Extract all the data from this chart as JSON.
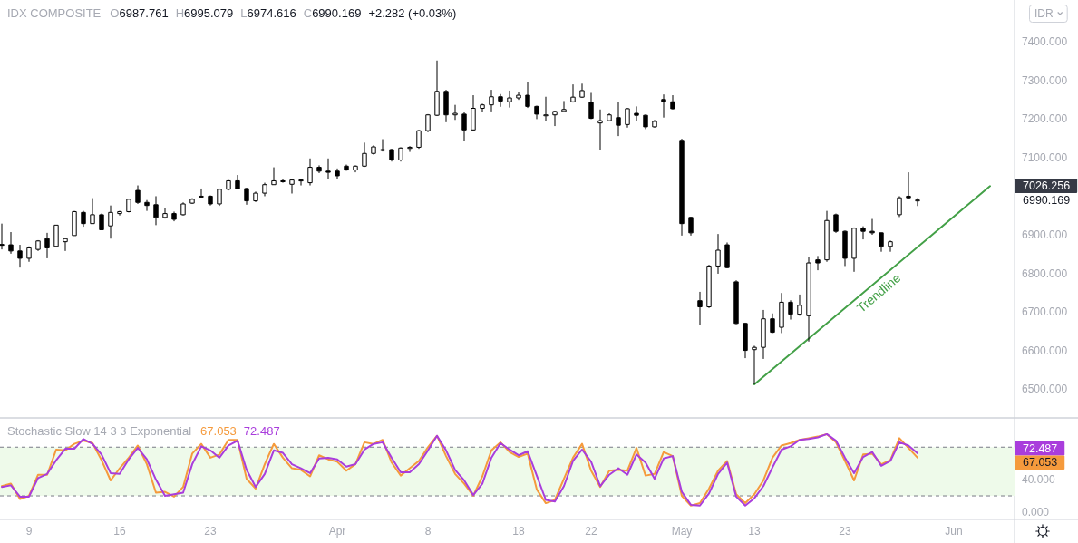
{
  "chart_data": [
    {
      "type": "candlestick",
      "title": "IDX COMPOSITE",
      "ylabel": "IDR",
      "categories": [
        null,
        null,
        null,
        null,
        null,
        null,
        null,
        null,
        null,
        null,
        null,
        null,
        null,
        null,
        null,
        null,
        null,
        null,
        null,
        null,
        null,
        null,
        null,
        null,
        null,
        null,
        null,
        null,
        null,
        null,
        null,
        null,
        null,
        null,
        null,
        null,
        null,
        null,
        null,
        null,
        null,
        null,
        null,
        null,
        null,
        null,
        null,
        null,
        null,
        null,
        null,
        null,
        null,
        null,
        null,
        null,
        null,
        null,
        null,
        null,
        null,
        null,
        null,
        null,
        null,
        null,
        null,
        null,
        null,
        null,
        null,
        null,
        null,
        null,
        null,
        null,
        null,
        null,
        null,
        null,
        null,
        null,
        null,
        null,
        null,
        null,
        null,
        null,
        null,
        null,
        null,
        null,
        null,
        null,
        null,
        null,
        null,
        null,
        null,
        null,
        null,
        null,
        null,
        null,
        null,
        null,
        null,
        null,
        null,
        null,
        null,
        null
      ],
      "ohlc": [
        [
          6875,
          6929,
          6862,
          6874
        ],
        [
          6874,
          6907,
          6851,
          6858
        ],
        [
          6858,
          6874,
          6815,
          6839
        ],
        [
          6839,
          6870,
          6830,
          6866
        ],
        [
          6862,
          6886,
          6858,
          6884
        ],
        [
          6890,
          6905,
          6839,
          6866
        ],
        [
          6870,
          6925,
          6868,
          6925
        ],
        [
          6882,
          6892,
          6858,
          6890
        ],
        [
          6898,
          6962,
          6898,
          6960
        ],
        [
          6958,
          6962,
          6921,
          6929
        ],
        [
          6929,
          6995,
          6929,
          6952
        ],
        [
          6952,
          6955,
          6913,
          6913
        ],
        [
          6923,
          6976,
          6890,
          6958
        ],
        [
          6955,
          6962,
          6950,
          6960
        ],
        [
          6960,
          6992,
          6958,
          6992
        ],
        [
          7015,
          7028,
          6980,
          6984
        ],
        [
          6984,
          6990,
          6962,
          6976
        ],
        [
          6978,
          7000,
          6925,
          6945
        ],
        [
          6945,
          6970,
          6942,
          6955
        ],
        [
          6955,
          6960,
          6935,
          6940
        ],
        [
          6952,
          6984,
          6950,
          6980
        ],
        [
          6982,
          6995,
          6980,
          6992
        ],
        [
          7000,
          7020,
          6998,
          7000
        ],
        [
          7000,
          7002,
          6976,
          6980
        ],
        [
          6980,
          7020,
          6975,
          7018
        ],
        [
          7018,
          7042,
          7015,
          7040
        ],
        [
          7040,
          7055,
          7018,
          7020
        ],
        [
          7020,
          7022,
          6978,
          6988
        ],
        [
          6988,
          7012,
          6985,
          7008
        ],
        [
          7008,
          7035,
          7000,
          7030
        ],
        [
          7030,
          7075,
          7030,
          7040
        ],
        [
          7040,
          7044,
          7035,
          7038
        ],
        [
          7031,
          7045,
          7007,
          7042
        ],
        [
          7042,
          7044,
          7028,
          7040
        ],
        [
          7035,
          7098,
          7028,
          7075
        ],
        [
          7075,
          7080,
          7060,
          7065
        ],
        [
          7065,
          7098,
          7045,
          7062
        ],
        [
          7065,
          7072,
          7045,
          7053
        ],
        [
          7078,
          7082,
          7066,
          7068
        ],
        [
          7068,
          7080,
          7062,
          7078
        ],
        [
          7078,
          7139,
          7076,
          7111
        ],
        [
          7111,
          7132,
          7108,
          7128
        ],
        [
          7121,
          7148,
          7116,
          7119
        ],
        [
          7121,
          7123,
          7090,
          7094
        ],
        [
          7094,
          7127,
          7090,
          7125
        ],
        [
          7124,
          7130,
          7115,
          7127
        ],
        [
          7127,
          7172,
          7123,
          7170
        ],
        [
          7170,
          7213,
          7166,
          7211
        ],
        [
          7210,
          7352,
          7208,
          7272
        ],
        [
          7272,
          7276,
          7192,
          7211
        ],
        [
          7211,
          7237,
          7198,
          7215
        ],
        [
          7213,
          7218,
          7143,
          7172
        ],
        [
          7172,
          7262,
          7170,
          7228
        ],
        [
          7228,
          7240,
          7218,
          7237
        ],
        [
          7237,
          7276,
          7220,
          7258
        ],
        [
          7258,
          7265,
          7232,
          7247
        ],
        [
          7245,
          7274,
          7230,
          7255
        ],
        [
          7255,
          7270,
          7250,
          7262
        ],
        [
          7262,
          7296,
          7229,
          7233
        ],
        [
          7233,
          7235,
          7200,
          7213
        ],
        [
          7210,
          7258,
          7194,
          7211
        ],
        [
          7211,
          7222,
          7182,
          7220
        ],
        [
          7220,
          7247,
          7218,
          7225
        ],
        [
          7245,
          7290,
          7243,
          7257
        ],
        [
          7257,
          7292,
          7255,
          7274
        ],
        [
          7243,
          7268,
          7200,
          7202
        ],
        [
          7190,
          7225,
          7121,
          7196
        ],
        [
          7196,
          7215,
          7194,
          7211
        ],
        [
          7204,
          7245,
          7156,
          7184
        ],
        [
          7186,
          7229,
          7178,
          7227
        ],
        [
          7215,
          7233,
          7194,
          7210
        ],
        [
          7210,
          7212,
          7174,
          7180
        ],
        [
          7180,
          7198,
          7178,
          7194
        ],
        [
          7251,
          7264,
          7204,
          7245
        ],
        [
          7245,
          7262,
          7225,
          7227
        ],
        [
          7145,
          7149,
          6898,
          6929
        ],
        [
          6945,
          6947,
          6898,
          6905
        ],
        [
          6729,
          6752,
          6666,
          6713
        ],
        [
          6713,
          6822,
          6710,
          6819
        ],
        [
          6819,
          6902,
          6799,
          6860
        ],
        [
          6874,
          6880,
          6813,
          6815
        ],
        [
          6778,
          6782,
          6668,
          6670
        ],
        [
          6670,
          6672,
          6580,
          6600
        ],
        [
          6602,
          6612,
          6512,
          6608
        ],
        [
          6608,
          6705,
          6578,
          6682
        ],
        [
          6682,
          6696,
          6645,
          6647
        ],
        [
          6660,
          6749,
          6645,
          6725
        ],
        [
          6725,
          6730,
          6680,
          6694
        ],
        [
          6694,
          6745,
          6690,
          6717
        ],
        [
          6690,
          6843,
          6623,
          6827
        ],
        [
          6835,
          6845,
          6808,
          6827
        ],
        [
          6835,
          6962,
          6830,
          6937
        ],
        [
          6952,
          6955,
          6905,
          6909
        ],
        [
          6909,
          6911,
          6819,
          6839
        ],
        [
          6839,
          6919,
          6804,
          6917
        ],
        [
          6917,
          6922,
          6888,
          6909
        ],
        [
          6909,
          6941,
          6900,
          6905
        ],
        [
          6905,
          6906,
          6856,
          6870
        ],
        [
          6870,
          6885,
          6856,
          6882
        ],
        [
          6952,
          7000,
          6946,
          6996
        ],
        [
          7000,
          7062,
          6994,
          6996
        ],
        [
          6987.761,
          6995.079,
          6974.616,
          6990.169
        ],
        null,
        null,
        null,
        null,
        null,
        null,
        null,
        null,
        null,
        null
      ],
      "series": [
        {
          "name": "Trendline",
          "type": "line",
          "color": "#43a047",
          "values": [
            null,
            null,
            null,
            null,
            null,
            null,
            null,
            null,
            null,
            null,
            null,
            null,
            null,
            null,
            null,
            null,
            null,
            null,
            null,
            null,
            null,
            null,
            null,
            null,
            null,
            null,
            null,
            null,
            null,
            null,
            null,
            null,
            null,
            null,
            null,
            null,
            null,
            null,
            null,
            null,
            null,
            null,
            null,
            null,
            null,
            null,
            null,
            null,
            null,
            null,
            null,
            null,
            null,
            null,
            null,
            null,
            null,
            null,
            null,
            null,
            null,
            null,
            null,
            null,
            null,
            null,
            null,
            null,
            null,
            null,
            null,
            null,
            null,
            null,
            null,
            null,
            null,
            null,
            null,
            null,
            null,
            null,
            null,
            6512,
            null,
            null,
            null,
            null,
            null,
            null,
            null,
            null,
            null,
            null,
            null,
            null,
            null,
            null,
            null,
            null,
            null,
            null,
            null,
            null,
            null,
            null,
            null,
            null,
            null,
            7026.256,
            null,
            null
          ]
        }
      ],
      "ylim": [
        6425,
        7509
      ],
      "yticks": [
        {
          "value": 6500,
          "label": "6500.000"
        },
        {
          "value": 6600,
          "label": "6600.000"
        },
        {
          "value": 6700,
          "label": "6700.000"
        },
        {
          "value": 6800,
          "label": "6800.000"
        },
        {
          "value": 6900,
          "label": "6900.000"
        },
        {
          "value": 7100,
          "label": "7100.000"
        },
        {
          "value": 7200,
          "label": "7200.000"
        },
        {
          "value": 7300,
          "label": "7300.000"
        },
        {
          "value": 7400,
          "label": "7400.000"
        },
        {
          "value": 7026.256,
          "label": "7026.256"
        },
        {
          "value": 6990.169,
          "label": "6990.169"
        }
      ],
      "annotations": [
        "O6987.761",
        "H6995.079",
        "L6974.616",
        "C6990.169",
        "+2.282 (+0.03%)"
      ]
    },
    {
      "type": "line",
      "title": "Stochastic Slow 14 3 3 Exponential",
      "categories": [
        null,
        null,
        null,
        "9",
        null,
        null,
        null,
        null,
        null,
        null,
        null,
        null,
        null,
        "16",
        null,
        null,
        null,
        null,
        null,
        null,
        null,
        null,
        null,
        "23",
        null,
        null,
        null,
        null,
        null,
        null,
        null,
        null,
        null,
        null,
        null,
        null,
        null,
        "Apr",
        null,
        null,
        null,
        null,
        null,
        null,
        null,
        null,
        null,
        "8",
        null,
        null,
        null,
        null,
        null,
        null,
        null,
        null,
        null,
        "18",
        null,
        null,
        null,
        null,
        null,
        null,
        null,
        "22",
        null,
        null,
        null,
        null,
        null,
        null,
        null,
        null,
        null,
        "May",
        null,
        null,
        null,
        null,
        null,
        null,
        null,
        "13",
        null,
        null,
        null,
        null,
        null,
        null,
        null,
        null,
        null,
        "23",
        null,
        null,
        null,
        null,
        null,
        null,
        null,
        null,
        null,
        null,
        null,
        "Jun",
        null,
        null,
        null,
        null,
        null,
        null
      ],
      "series": [
        {
          "color": "#f59a3c",
          "values": [
            32,
            35,
            16,
            20,
            46,
            46,
            77,
            76,
            84,
            88,
            85,
            64,
            39,
            54,
            67,
            82,
            59,
            24,
            25,
            19,
            31,
            72,
            84,
            67,
            71,
            89,
            89,
            41,
            29,
            59,
            84,
            67,
            54,
            52,
            44,
            70,
            65,
            62,
            51,
            59,
            86,
            84,
            89,
            61,
            45,
            54,
            63,
            80,
            94,
            69,
            47,
            35,
            20,
            44,
            76,
            86,
            74,
            68,
            72,
            28,
            11,
            15,
            41,
            67,
            84,
            51,
            31,
            51,
            52,
            51,
            79,
            45,
            47,
            74,
            69,
            20,
            8,
            11,
            29,
            51,
            63,
            22,
            11,
            22,
            39,
            67,
            82,
            85,
            89,
            91,
            93,
            96,
            86,
            63,
            39,
            71,
            72,
            59,
            64,
            91,
            79,
            67.053,
            null,
            null,
            null,
            null,
            null,
            null,
            null,
            null,
            null,
            null
          ]
        },
        {
          "color": "#a93ddc",
          "values": [
            31,
            33,
            19,
            19,
            42,
            47,
            64,
            78,
            78,
            90,
            84,
            71,
            48,
            47,
            65,
            79,
            65,
            40,
            20,
            22,
            24,
            59,
            81,
            76,
            67,
            82,
            88,
            52,
            31,
            47,
            76,
            73,
            59,
            54,
            48,
            66,
            67,
            65,
            56,
            59,
            77,
            84,
            86,
            67,
            49,
            49,
            59,
            76,
            94,
            76,
            52,
            39,
            21,
            35,
            67,
            85,
            77,
            70,
            75,
            45,
            15,
            13,
            32,
            63,
            77,
            62,
            32,
            46,
            54,
            46,
            71,
            61,
            41,
            66,
            69,
            25,
            9,
            8,
            23,
            47,
            61,
            19,
            8,
            17,
            32,
            55,
            77,
            81,
            89,
            90,
            92,
            96,
            88,
            67,
            48,
            68,
            74,
            57,
            63,
            86,
            82,
            72.487,
            null,
            null,
            null,
            null,
            null,
            null,
            null,
            null,
            null,
            null
          ]
        }
      ],
      "ylim": [
        -9,
        116
      ],
      "yticks": [
        {
          "value": 0,
          "label": "0.000"
        },
        {
          "value": 40,
          "label": "40.000"
        },
        {
          "value": 72.487,
          "label": "72.487"
        },
        {
          "value": 67.053,
          "label": "67.053"
        }
      ],
      "ref_lines": [
        {
          "axis": "y",
          "value": 80,
          "color": "#787b86",
          "line_style": "dashed"
        },
        {
          "axis": "y",
          "value": 20,
          "color": "#787b86",
          "line_style": "dashed"
        }
      ],
      "bands": [
        {
          "axis": "y",
          "from": 20,
          "to": 80,
          "color": "#eefaea"
        }
      ],
      "annotations": [
        "67.053",
        "72.487"
      ]
    }
  ]
}
